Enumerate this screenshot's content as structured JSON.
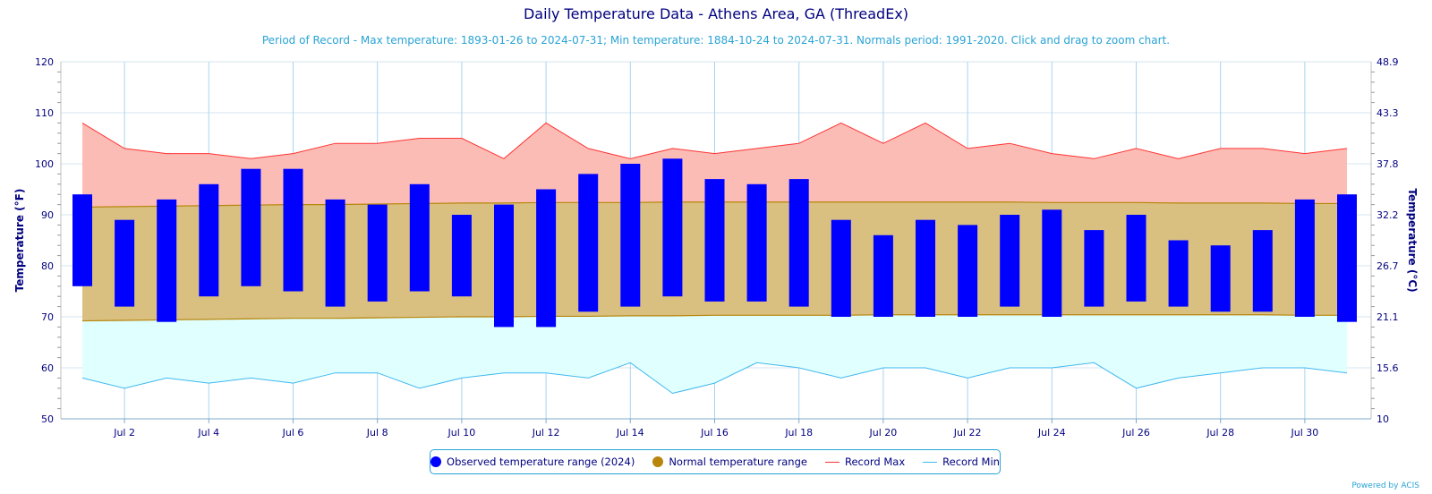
{
  "title": "Daily Temperature Data - Athens Area, GA (ThreadEx)",
  "subtitle": "Period of Record - Max temperature: 1893-01-26 to 2024-07-31; Min temperature: 1884-10-24 to 2024-07-31. Normals period: 1991-2020. Click and drag to zoom chart.",
  "credit": "Powered by ACIS",
  "colors": {
    "observed": "#0000ff",
    "normal_fill": "#d9bf80",
    "normal_line": "#b8860b",
    "record_max_fill": "#fbbcb5",
    "record_max_line": "#ff3333",
    "record_min_fill": "#e0ffff",
    "record_min_line": "#40b8f0",
    "axis_text": "#000080",
    "grid": "#a8d4ee"
  },
  "legend": [
    {
      "label": "Observed temperature range (2024)",
      "kind": "dot",
      "color": "#0000ff"
    },
    {
      "label": "Normal temperature range",
      "kind": "dot",
      "color": "#b8860b"
    },
    {
      "label": "Record Max",
      "kind": "line",
      "color": "#ff3333"
    },
    {
      "label": "Record Min",
      "kind": "line",
      "color": "#40b8f0"
    }
  ],
  "chart_data": {
    "type": "bar",
    "xlabel": "",
    "ylabel": "Temperature (°F)",
    "ylabel_right": "Temperature (°C)",
    "ylim": [
      50,
      120
    ],
    "yticks_left": [
      "50",
      "60",
      "70",
      "80",
      "90",
      "100",
      "110",
      "120"
    ],
    "yticks_right": [
      "10",
      "15.6",
      "21.1",
      "26.7",
      "32.2",
      "37.8",
      "43.3",
      "48.9"
    ],
    "xlim": [
      1,
      31
    ],
    "x_tick_labels": [
      "Jul 2",
      "Jul 4",
      "Jul 6",
      "Jul 8",
      "Jul 10",
      "Jul 12",
      "Jul 14",
      "Jul 16",
      "Jul 18",
      "Jul 20",
      "Jul 22",
      "Jul 24",
      "Jul 26",
      "Jul 28",
      "Jul 30"
    ],
    "days": [
      1,
      2,
      3,
      4,
      5,
      6,
      7,
      8,
      9,
      10,
      11,
      12,
      13,
      14,
      15,
      16,
      17,
      18,
      19,
      20,
      21,
      22,
      23,
      24,
      25,
      26,
      27,
      28,
      29,
      30,
      31
    ],
    "series": [
      {
        "name": "Observed temperature range (2024)",
        "kind": "range-bar",
        "low": [
          76,
          72,
          69,
          74,
          76,
          75,
          72,
          73,
          75,
          74,
          68,
          68,
          71,
          72,
          74,
          73,
          73,
          72,
          70,
          70,
          70,
          70,
          72,
          70,
          72,
          73,
          72,
          71,
          71,
          70,
          69
        ],
        "high": [
          94,
          89,
          93,
          96,
          99,
          99,
          93,
          92,
          96,
          90,
          92,
          95,
          98,
          100,
          101,
          97,
          96,
          97,
          89,
          86,
          89,
          88,
          90,
          91,
          87,
          90,
          85,
          84,
          87,
          93,
          94
        ]
      },
      {
        "name": "Normal temperature range",
        "kind": "range-area",
        "low": [
          69.2,
          69.3,
          69.4,
          69.5,
          69.6,
          69.7,
          69.7,
          69.8,
          69.9,
          70.0,
          70.0,
          70.1,
          70.1,
          70.2,
          70.2,
          70.3,
          70.3,
          70.3,
          70.3,
          70.4,
          70.4,
          70.4,
          70.4,
          70.4,
          70.4,
          70.4,
          70.4,
          70.4,
          70.4,
          70.3,
          70.3
        ],
        "high": [
          91.5,
          91.6,
          91.7,
          91.8,
          91.9,
          92.0,
          92.0,
          92.1,
          92.2,
          92.3,
          92.3,
          92.4,
          92.4,
          92.4,
          92.5,
          92.5,
          92.5,
          92.5,
          92.5,
          92.5,
          92.5,
          92.5,
          92.5,
          92.4,
          92.4,
          92.4,
          92.3,
          92.3,
          92.3,
          92.2,
          92.2
        ]
      },
      {
        "name": "Record Max",
        "kind": "line",
        "values": [
          108,
          103,
          102,
          102,
          101,
          102,
          104,
          104,
          105,
          105,
          101,
          108,
          103,
          101,
          103,
          102,
          103,
          104,
          108,
          104,
          108,
          103,
          104,
          102,
          101,
          103,
          101,
          103,
          103,
          102,
          103
        ]
      },
      {
        "name": "Record Min",
        "kind": "line",
        "values": [
          58,
          56,
          58,
          57,
          58,
          57,
          59,
          59,
          56,
          58,
          59,
          59,
          58,
          61,
          55,
          57,
          61,
          60,
          58,
          60,
          60,
          58,
          60,
          60,
          61,
          56,
          58,
          59,
          60,
          60,
          59
        ]
      }
    ]
  }
}
